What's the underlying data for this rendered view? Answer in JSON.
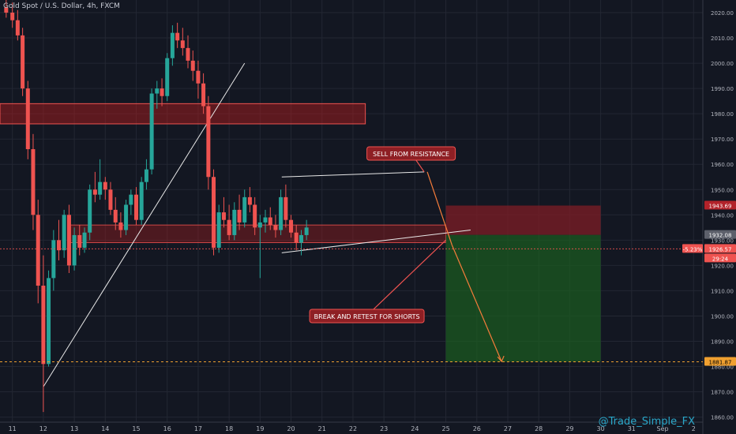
{
  "header": {
    "symbol_title": "Gold Spot / U.S. Dollar, 4h, FXCM"
  },
  "watermark": "@Trade_Simple_FX",
  "colors": {
    "bull": "#26a69a",
    "bear": "#ef5350",
    "background": "#131722",
    "grid": "#232733",
    "axis_text": "#b2b5be",
    "zone": "#b71c1c",
    "profit_zone": "#1b5e20",
    "loss_zone": "#7f1d25",
    "arrow": "#f57c3a"
  },
  "chart_data": {
    "type": "candlestick",
    "y_ticks": [
      1860,
      1870,
      1880,
      1890,
      1900,
      1910,
      1920,
      1930,
      1940,
      1950,
      1960,
      1970,
      1980,
      1990,
      2000,
      2010,
      2020
    ],
    "ylim": [
      1858,
      2025
    ],
    "x_ticks": [
      "11",
      "12",
      "13",
      "14",
      "15",
      "16",
      "17",
      "18",
      "19",
      "20",
      "21",
      "22",
      "23",
      "24",
      "25",
      "26",
      "27",
      "28",
      "29",
      "30",
      "31",
      "Sep",
      "2"
    ],
    "xlim": [
      10.6,
      33.3
    ],
    "candles": [
      {
        "t": 10.8,
        "o": 2022,
        "h": 2025,
        "l": 2018,
        "c": 2020
      },
      {
        "t": 11.0,
        "o": 2020,
        "h": 2024,
        "l": 2014,
        "c": 2017
      },
      {
        "t": 11.17,
        "o": 2017,
        "h": 2021,
        "l": 2009,
        "c": 2011
      },
      {
        "t": 11.33,
        "o": 2011,
        "h": 2014,
        "l": 1987,
        "c": 1990
      },
      {
        "t": 11.5,
        "o": 1990,
        "h": 1993,
        "l": 1962,
        "c": 1966
      },
      {
        "t": 11.67,
        "o": 1966,
        "h": 1972,
        "l": 1934,
        "c": 1940
      },
      {
        "t": 11.83,
        "o": 1940,
        "h": 1946,
        "l": 1905,
        "c": 1912
      },
      {
        "t": 12.0,
        "o": 1912,
        "h": 1924,
        "l": 1862,
        "c": 1881
      },
      {
        "t": 12.17,
        "o": 1881,
        "h": 1918,
        "l": 1880,
        "c": 1915
      },
      {
        "t": 12.33,
        "o": 1915,
        "h": 1934,
        "l": 1910,
        "c": 1930
      },
      {
        "t": 12.5,
        "o": 1930,
        "h": 1938,
        "l": 1922,
        "c": 1926
      },
      {
        "t": 12.67,
        "o": 1926,
        "h": 1942,
        "l": 1923,
        "c": 1940
      },
      {
        "t": 12.83,
        "o": 1940,
        "h": 1944,
        "l": 1917,
        "c": 1920
      },
      {
        "t": 13.0,
        "o": 1920,
        "h": 1935,
        "l": 1918,
        "c": 1932
      },
      {
        "t": 13.17,
        "o": 1932,
        "h": 1936,
        "l": 1924,
        "c": 1927
      },
      {
        "t": 13.33,
        "o": 1927,
        "h": 1935,
        "l": 1925,
        "c": 1933
      },
      {
        "t": 13.5,
        "o": 1933,
        "h": 1952,
        "l": 1930,
        "c": 1950
      },
      {
        "t": 13.67,
        "o": 1950,
        "h": 1957,
        "l": 1945,
        "c": 1948
      },
      {
        "t": 13.83,
        "o": 1948,
        "h": 1962,
        "l": 1946,
        "c": 1953
      },
      {
        "t": 14.0,
        "o": 1953,
        "h": 1955,
        "l": 1946,
        "c": 1950
      },
      {
        "t": 14.17,
        "o": 1950,
        "h": 1953,
        "l": 1940,
        "c": 1942
      },
      {
        "t": 14.33,
        "o": 1942,
        "h": 1947,
        "l": 1934,
        "c": 1937
      },
      {
        "t": 14.5,
        "o": 1937,
        "h": 1941,
        "l": 1931,
        "c": 1934
      },
      {
        "t": 14.67,
        "o": 1934,
        "h": 1946,
        "l": 1932,
        "c": 1944
      },
      {
        "t": 14.83,
        "o": 1944,
        "h": 1950,
        "l": 1940,
        "c": 1948
      },
      {
        "t": 15.0,
        "o": 1948,
        "h": 1951,
        "l": 1936,
        "c": 1938
      },
      {
        "t": 15.17,
        "o": 1938,
        "h": 1955,
        "l": 1936,
        "c": 1953
      },
      {
        "t": 15.33,
        "o": 1953,
        "h": 1962,
        "l": 1950,
        "c": 1958
      },
      {
        "t": 15.5,
        "o": 1958,
        "h": 1990,
        "l": 1956,
        "c": 1988
      },
      {
        "t": 15.67,
        "o": 1988,
        "h": 1993,
        "l": 1982,
        "c": 1990
      },
      {
        "t": 15.83,
        "o": 1990,
        "h": 1994,
        "l": 1983,
        "c": 1987
      },
      {
        "t": 16.0,
        "o": 1987,
        "h": 2004,
        "l": 1985,
        "c": 2002
      },
      {
        "t": 16.17,
        "o": 2002,
        "h": 2015,
        "l": 1999,
        "c": 2012
      },
      {
        "t": 16.33,
        "o": 2012,
        "h": 2016,
        "l": 2006,
        "c": 2009
      },
      {
        "t": 16.5,
        "o": 2009,
        "h": 2014,
        "l": 2003,
        "c": 2006
      },
      {
        "t": 16.67,
        "o": 2006,
        "h": 2011,
        "l": 1998,
        "c": 2001
      },
      {
        "t": 16.83,
        "o": 2001,
        "h": 2005,
        "l": 1993,
        "c": 1997
      },
      {
        "t": 17.0,
        "o": 1997,
        "h": 2001,
        "l": 1986,
        "c": 1992
      },
      {
        "t": 17.17,
        "o": 1992,
        "h": 1996,
        "l": 1980,
        "c": 1983
      },
      {
        "t": 17.33,
        "o": 1983,
        "h": 1987,
        "l": 1950,
        "c": 1955
      },
      {
        "t": 17.5,
        "o": 1955,
        "h": 1958,
        "l": 1924,
        "c": 1927
      },
      {
        "t": 17.67,
        "o": 1927,
        "h": 1944,
        "l": 1925,
        "c": 1941
      },
      {
        "t": 17.83,
        "o": 1941,
        "h": 1947,
        "l": 1935,
        "c": 1938
      },
      {
        "t": 18.0,
        "o": 1938,
        "h": 1944,
        "l": 1930,
        "c": 1932
      },
      {
        "t": 18.17,
        "o": 1932,
        "h": 1945,
        "l": 1930,
        "c": 1942
      },
      {
        "t": 18.33,
        "o": 1942,
        "h": 1948,
        "l": 1934,
        "c": 1937
      },
      {
        "t": 18.5,
        "o": 1937,
        "h": 1950,
        "l": 1935,
        "c": 1947
      },
      {
        "t": 18.67,
        "o": 1947,
        "h": 1951,
        "l": 1941,
        "c": 1944
      },
      {
        "t": 18.83,
        "o": 1944,
        "h": 1947,
        "l": 1932,
        "c": 1935
      },
      {
        "t": 19.0,
        "o": 1935,
        "h": 1940,
        "l": 1915,
        "c": 1937
      },
      {
        "t": 19.17,
        "o": 1937,
        "h": 1942,
        "l": 1933,
        "c": 1939
      },
      {
        "t": 19.33,
        "o": 1939,
        "h": 1943,
        "l": 1934,
        "c": 1936
      },
      {
        "t": 19.5,
        "o": 1936,
        "h": 1940,
        "l": 1931,
        "c": 1934
      },
      {
        "t": 19.67,
        "o": 1934,
        "h": 1950,
        "l": 1932,
        "c": 1947
      },
      {
        "t": 19.83,
        "o": 1947,
        "h": 1952,
        "l": 1935,
        "c": 1938
      },
      {
        "t": 20.0,
        "o": 1938,
        "h": 1940,
        "l": 1931,
        "c": 1933
      },
      {
        "t": 20.17,
        "o": 1933,
        "h": 1936,
        "l": 1926,
        "c": 1929
      },
      {
        "t": 20.33,
        "o": 1929,
        "h": 1934,
        "l": 1924,
        "c": 1932
      },
      {
        "t": 20.5,
        "o": 1932,
        "h": 1938,
        "l": 1930,
        "c": 1935
      }
    ]
  },
  "overlays": {
    "resistance_zone_high": [
      1984,
      1976
    ],
    "support_zone": [
      1936,
      1929
    ],
    "short_position": {
      "stop_level": 1943.69,
      "entry_level": 1932.08,
      "target_level": 1881.87
    },
    "price_labels": {
      "stop": "1943.69",
      "entry": "1932.08",
      "current": "1926.57",
      "pct": "-5.23%",
      "countdown": "29:24",
      "target": "1881.87"
    },
    "annotations": {
      "sell": "SELL FROM RESISTANCE",
      "break": "BREAK AND RETEST FOR SHORTS"
    }
  }
}
